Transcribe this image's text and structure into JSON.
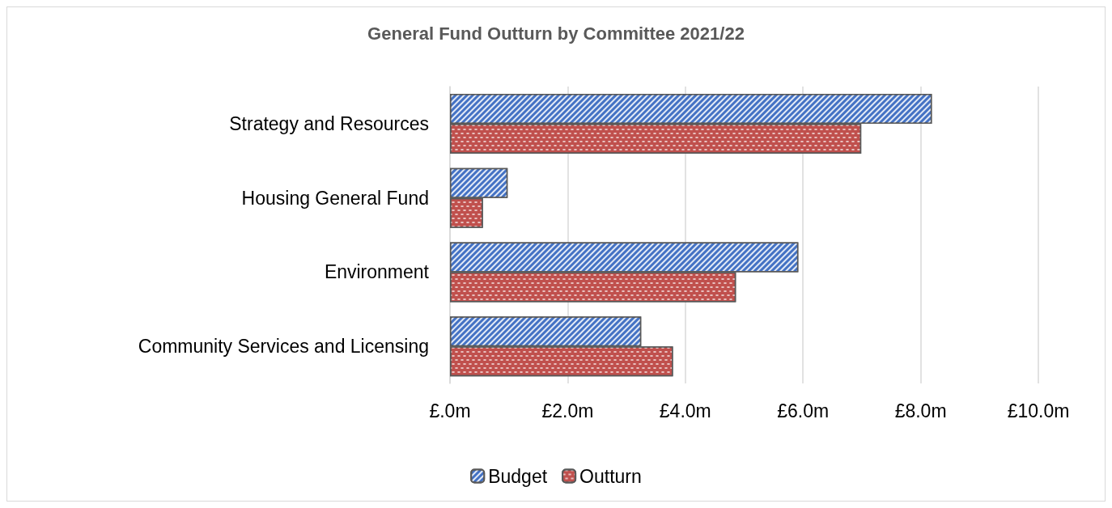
{
  "chart_data": {
    "type": "bar",
    "orientation": "horizontal",
    "title": "General Fund Outturn by Committee 2021/22",
    "categories": [
      "Strategy and Resources",
      "Housing General Fund",
      "Environment",
      "Community Services and Licensing"
    ],
    "series": [
      {
        "name": "Budget",
        "color": "#4472c4",
        "values": [
          8.19,
          0.98,
          5.92,
          3.25
        ]
      },
      {
        "name": "Outturn",
        "color": "#c0504d",
        "values": [
          6.99,
          0.56,
          4.86,
          3.79
        ]
      }
    ],
    "xlim": [
      0,
      10
    ],
    "xticks": [
      {
        "value": 0,
        "label": "£.0m"
      },
      {
        "value": 2,
        "label": "£2.0m"
      },
      {
        "value": 4,
        "label": "£4.0m"
      },
      {
        "value": 6,
        "label": "£6.0m"
      },
      {
        "value": 8,
        "label": "£8.0m"
      },
      {
        "value": 10,
        "label": "£10.0m"
      }
    ],
    "grid": "x",
    "legend": "bottom"
  }
}
